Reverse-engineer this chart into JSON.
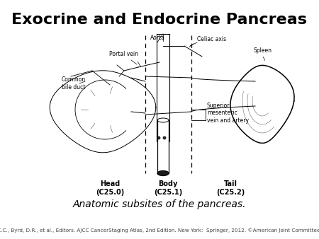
{
  "title": "Exocrine and Endocrine Pancreas",
  "title_fontsize": 16,
  "title_fontweight": "bold",
  "caption": "Anatomic subsites of the pancreas.",
  "caption_fontsize": 10,
  "citation": "Compton, C.C., Byrd, D.R., et al., Editors. AJCC CancerStaging Atlas, 2nd Edition. New York:  Springer, 2012. ©American Joint Committee on Cancer",
  "citation_fontsize": 5.2,
  "bg_color": "#ffffff",
  "label_head": "Head\n(C25.0)",
  "label_body": "Body\n(C25.1)",
  "label_tail": "Tail\n(C25.2)",
  "label_aorta": "Aorta",
  "label_celiac": "Celiac axis",
  "label_portal": "Portal vein",
  "label_bile": "Common\nbile duct",
  "label_spleen": "Spleen",
  "label_sma": "Superior\nmesenteric\nvein and artery",
  "line_color": "#000000",
  "anatomy_lw": 0.7,
  "fig_w": 4.5,
  "fig_h": 3.38,
  "dpi": 100
}
